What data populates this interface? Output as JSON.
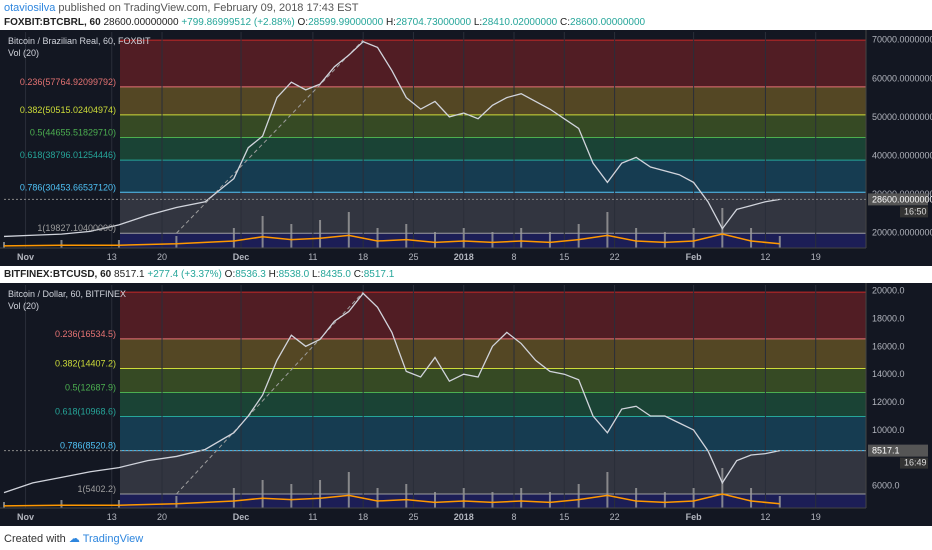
{
  "header": {
    "user": "otaviosilva",
    "published_text": "published on TradingView.com, February 09, 2018 17:43 EST"
  },
  "footer": {
    "created_with": "Created with",
    "brand": "TradingView"
  },
  "colors": {
    "bg": "#131722",
    "grid": "#2a2e39",
    "price": "#d1d4dc",
    "volume": "#9e9e9e",
    "vol_ma": "#ff9800",
    "fib_0": "#c62828",
    "fib_236": "#e57373",
    "fib_382": "#cddc39",
    "fib_5": "#4caf50",
    "fib_618": "#26a69a",
    "fib_786": "#4fc3f7",
    "fib_1": "#9e9e9e"
  },
  "charts": [
    {
      "symbol_line": {
        "symbol": "FOXBIT:BTCBRL, 60",
        "price": "28600.00000000",
        "change": "+799.86999512 (+2.88%)",
        "O": "28599.99000000",
        "H": "28704.73000000",
        "L": "28410.02000000",
        "C": "28600.00000000"
      },
      "title": "Bitcoin / Brazilian Real, 60, FOXBIT",
      "vol_label": "Vol (20)",
      "last_price_label": "28600.00000000",
      "countdown": "16:50",
      "x_ticks": [
        "Nov",
        "13",
        "20",
        "Dec",
        "11",
        "18",
        "25",
        "2018",
        "8",
        "15",
        "22",
        "Feb",
        "12",
        "19"
      ],
      "fib_labels": [
        {
          "level": "0.236",
          "value": "(57764.92099792)"
        },
        {
          "level": "0.382",
          "value": "(50515.02404974)"
        },
        {
          "level": "0.5",
          "value": "(44655.51829710)"
        },
        {
          "level": "0.618",
          "value": "(38796.01254446)"
        },
        {
          "level": "0.786",
          "value": "(30453.66537120)"
        },
        {
          "level": "1",
          "value": "(19827.10400000)"
        }
      ],
      "chart_data": {
        "type": "line",
        "title": "Bitcoin / Brazilian Real, 60, FOXBIT",
        "y_axis_ticks": [
          "70000.00000000",
          "60000.00000000",
          "50000.00000000",
          "40000.00000000",
          "30000.00000000",
          "20000.00000000"
        ],
        "ylim": [
          16000,
          72000
        ],
        "x_range_days": [
          0,
          112
        ],
        "tick_days": [
          3,
          15,
          22,
          33,
          43,
          50,
          57,
          64,
          71,
          78,
          85,
          96,
          106,
          113
        ],
        "fib_levels": [
          {
            "ratio": 0,
            "price": 69900
          },
          {
            "ratio": 0.236,
            "price": 57764.92
          },
          {
            "ratio": 0.382,
            "price": 50515.02
          },
          {
            "ratio": 0.5,
            "price": 44655.52
          },
          {
            "ratio": 0.618,
            "price": 38796.01
          },
          {
            "ratio": 0.786,
            "price": 30453.67
          },
          {
            "ratio": 1,
            "price": 19827.1
          }
        ],
        "series": [
          {
            "x_days": [
              0,
              4,
              8,
              12,
              16,
              20,
              24,
              28,
              32,
              34,
              36,
              38,
              40,
              42,
              44,
              46,
              48,
              50,
              52,
              54,
              56,
              58,
              60,
              62,
              64,
              66,
              68,
              70,
              72,
              74,
              76,
              78,
              80,
              82,
              84,
              86,
              88,
              90,
              92,
              94,
              96,
              98,
              100,
              102,
              104,
              106,
              108
            ],
            "values": [
              19000,
              19300,
              19600,
              20300,
              22000,
              24500,
              26500,
              28000,
              34000,
              42000,
              45000,
              55000,
              59000,
              57000,
              58500,
              63000,
              66000,
              69500,
              68000,
              62000,
              55000,
              52000,
              54000,
              50000,
              51000,
              49500,
              53000,
              55000,
              56000,
              54000,
              52000,
              49500,
              47000,
              38000,
              33000,
              38000,
              39500,
              37000,
              36000,
              35000,
              33000,
              28000,
              21000,
              26000,
              27000,
              28000,
              28600
            ]
          }
        ],
        "volume": {
          "x_days": [
            0,
            8,
            16,
            24,
            32,
            36,
            40,
            44,
            48,
            52,
            56,
            60,
            64,
            68,
            72,
            76,
            80,
            84,
            88,
            92,
            96,
            100,
            104,
            108
          ],
          "values": [
            0.15,
            0.2,
            0.2,
            0.3,
            0.5,
            0.8,
            0.6,
            0.7,
            0.9,
            0.5,
            0.6,
            0.4,
            0.5,
            0.4,
            0.5,
            0.4,
            0.6,
            0.9,
            0.5,
            0.4,
            0.5,
            1.0,
            0.5,
            0.3
          ]
        }
      }
    },
    {
      "symbol_line": {
        "symbol": "BITFINEX:BTCUSD, 60",
        "price": "8517.1",
        "change": "+277.4 (+3.37%)",
        "O": "8536.3",
        "H": "8538.0",
        "L": "8435.0",
        "C": "8517.1"
      },
      "title": "Bitcoin / Dollar, 60, BITFINEX",
      "vol_label": "Vol (20)",
      "last_price_label": "8517.1",
      "countdown": "16:49",
      "x_ticks": [
        "Nov",
        "13",
        "20",
        "Dec",
        "11",
        "18",
        "25",
        "2018",
        "8",
        "15",
        "22",
        "Feb",
        "12",
        "19"
      ],
      "fib_labels": [
        {
          "level": "0.236",
          "value": "(16534.5)"
        },
        {
          "level": "0.382",
          "value": "(14407.2)"
        },
        {
          "level": "0.5",
          "value": "(12687.9)"
        },
        {
          "level": "0.618",
          "value": "(10968.6)"
        },
        {
          "level": "0.786",
          "value": "(8520.8)"
        },
        {
          "level": "1",
          "value": "(5402.2)"
        }
      ],
      "chart_data": {
        "type": "line",
        "title": "Bitcoin / Dollar, 60, BITFINEX",
        "y_axis_ticks": [
          "20000.0",
          "18000.0",
          "16000.0",
          "14000.0",
          "12000.0",
          "10000.0",
          "6000.0"
        ],
        "ylim": [
          4400,
          20400
        ],
        "x_range_days": [
          0,
          112
        ],
        "tick_days": [
          3,
          15,
          22,
          33,
          43,
          50,
          57,
          64,
          71,
          78,
          85,
          96,
          106,
          113
        ],
        "fib_levels": [
          {
            "ratio": 0,
            "price": 19891
          },
          {
            "ratio": 0.236,
            "price": 16534.5
          },
          {
            "ratio": 0.382,
            "price": 14407.2
          },
          {
            "ratio": 0.5,
            "price": 12687.9
          },
          {
            "ratio": 0.618,
            "price": 10968.6
          },
          {
            "ratio": 0.786,
            "price": 8520.8
          },
          {
            "ratio": 1,
            "price": 5402.2
          }
        ],
        "series": [
          {
            "x_days": [
              0,
              4,
              8,
              12,
              16,
              20,
              24,
              28,
              32,
              34,
              36,
              38,
              40,
              42,
              44,
              46,
              48,
              50,
              52,
              54,
              56,
              58,
              60,
              62,
              64,
              66,
              68,
              70,
              72,
              74,
              76,
              78,
              80,
              82,
              84,
              86,
              88,
              90,
              92,
              94,
              96,
              98,
              100,
              102,
              104,
              106,
              108
            ],
            "values": [
              5500,
              6200,
              6600,
              7000,
              7300,
              7800,
              8100,
              8600,
              9800,
              11000,
              12500,
              15000,
              16800,
              16000,
              16500,
              17800,
              18500,
              19800,
              18800,
              17000,
              14200,
              13800,
              15200,
              13500,
              14000,
              13800,
              16000,
              17000,
              16200,
              15000,
              14200,
              14000,
              13600,
              11000,
              9800,
              11500,
              11700,
              11000,
              11000,
              10500,
              10000,
              8500,
              6200,
              7800,
              8200,
              8300,
              8517
            ]
          }
        ],
        "volume": {
          "x_days": [
            0,
            8,
            16,
            24,
            32,
            36,
            40,
            44,
            48,
            52,
            56,
            60,
            64,
            68,
            72,
            76,
            80,
            84,
            88,
            92,
            96,
            100,
            104,
            108
          ],
          "values": [
            0.15,
            0.2,
            0.2,
            0.3,
            0.5,
            0.7,
            0.6,
            0.7,
            0.9,
            0.5,
            0.6,
            0.4,
            0.5,
            0.4,
            0.5,
            0.4,
            0.6,
            0.9,
            0.5,
            0.4,
            0.5,
            1.0,
            0.5,
            0.3
          ]
        }
      }
    }
  ]
}
